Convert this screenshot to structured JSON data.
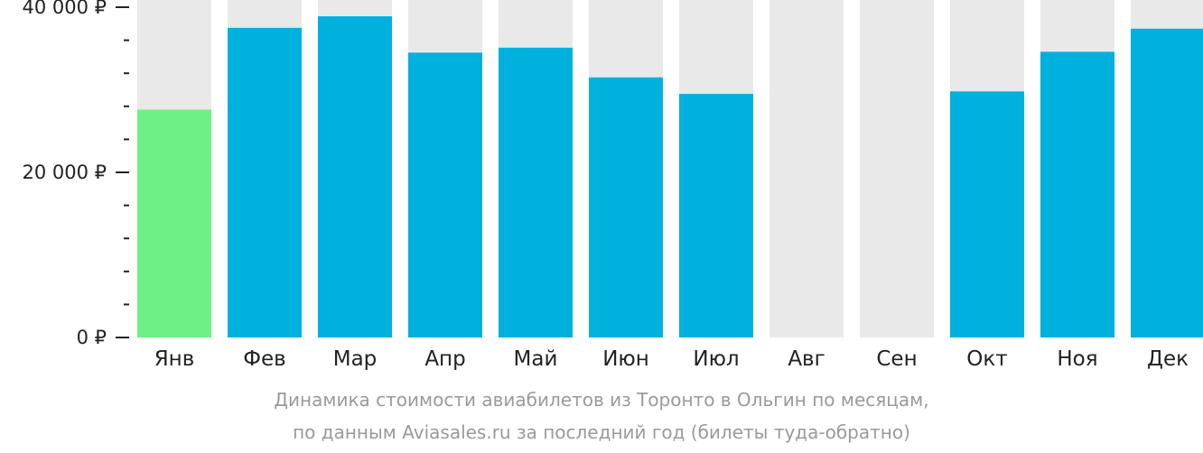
{
  "colors": {
    "background_bar": "#e9e9e9",
    "bar": "#00b0dd",
    "highlight_bar": "#6ef084",
    "axis_text": "#222222",
    "caption_text": "#9a9a9a"
  },
  "caption": {
    "line1": "Динамика стоимости авиабилетов из Торонто в Ольгин по месяцам,",
    "line2": "по данным Aviasales.ru за последний год (билеты туда-обратно)"
  },
  "chart_data": {
    "type": "bar",
    "title": "",
    "xlabel": "",
    "ylabel": "",
    "ylim": [
      0,
      40000
    ],
    "y_ticks": [
      {
        "value": 0,
        "label": "0 ₽"
      },
      {
        "value": 20000,
        "label": "20 000 ₽"
      },
      {
        "value": 40000,
        "label": "40 000 ₽"
      }
    ],
    "y_minor_step": 4000,
    "categories": [
      "Янв",
      "Фев",
      "Мар",
      "Апр",
      "Май",
      "Июн",
      "Июл",
      "Авг",
      "Сен",
      "Окт",
      "Ноя",
      "Дек"
    ],
    "values": [
      27600,
      37500,
      38900,
      34500,
      35100,
      31500,
      29500,
      null,
      null,
      29800,
      34600,
      37400
    ],
    "highlight_index": 0
  }
}
